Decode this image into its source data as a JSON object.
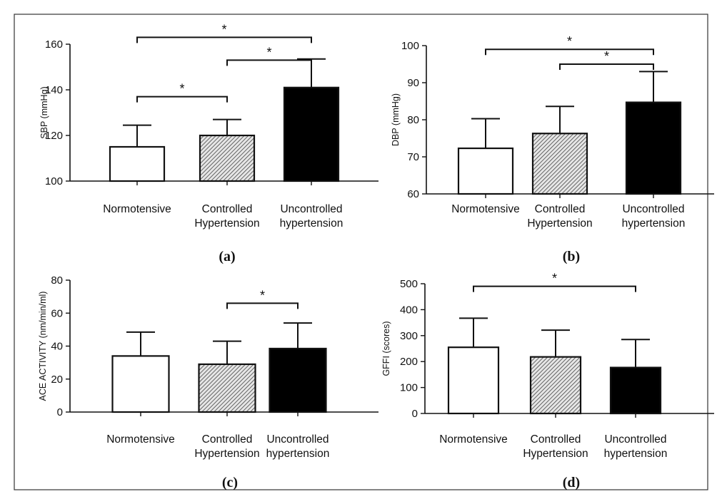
{
  "colors": {
    "normotensive": "#ffffff",
    "controlled": "hatched-gray",
    "uncontrolled": "#000000",
    "border": "#1a1a1a"
  },
  "chart_data": [
    {
      "type": "bar",
      "panel_label": "(a)",
      "ylabel": "SBP (mmHg)",
      "ylim": [
        100,
        160
      ],
      "yticks": [
        100,
        120,
        140,
        160
      ],
      "categories": [
        [
          "Normotensive"
        ],
        [
          "Controlled",
          "Hypertension"
        ],
        [
          "Uncontrolled",
          "hypertension"
        ]
      ],
      "values": [
        115,
        120,
        141
      ],
      "errors": [
        9.5,
        7,
        12.5
      ],
      "significance": [
        {
          "from": 0,
          "to": 2,
          "level": 163,
          "label": "*"
        },
        {
          "from": 1,
          "to": 2,
          "level": 153,
          "label": "*"
        },
        {
          "from": 0,
          "to": 1,
          "level": 137,
          "label": "*"
        }
      ]
    },
    {
      "type": "bar",
      "panel_label": "(b)",
      "ylabel": "DBP (mmHg)",
      "ylim": [
        60,
        100
      ],
      "yticks": [
        60,
        70,
        80,
        90,
        100
      ],
      "categories": [
        [
          "Normotensive"
        ],
        [
          "Controlled",
          "Hypertension"
        ],
        [
          "Uncontrolled",
          "hypertension"
        ]
      ],
      "values": [
        72.3,
        76.3,
        84.7
      ],
      "errors": [
        8,
        7.3,
        8.3
      ],
      "significance": [
        {
          "from": 0,
          "to": 2,
          "level": 99,
          "label": "*"
        },
        {
          "from": 1,
          "to": 2,
          "level": 95,
          "label": "*"
        }
      ]
    },
    {
      "type": "bar",
      "panel_label": "(c)",
      "ylabel": "ACE ACTIVITY (nm/min/ml)",
      "ylim": [
        0,
        80
      ],
      "yticks": [
        0,
        20,
        40,
        60,
        80
      ],
      "categories": [
        [
          "Normotensive"
        ],
        [
          "Controlled",
          "Hypertension"
        ],
        [
          "Uncontrolled",
          "hypertension"
        ]
      ],
      "values": [
        34,
        29,
        38.5
      ],
      "errors": [
        14.5,
        14,
        15.5
      ],
      "significance": [
        {
          "from": 1,
          "to": 2,
          "level": 66,
          "label": "*"
        }
      ]
    },
    {
      "type": "bar",
      "panel_label": "(d)",
      "ylabel": "GFFI (scores)",
      "ylim": [
        0,
        500
      ],
      "yticks": [
        0,
        100,
        200,
        300,
        400,
        500
      ],
      "categories": [
        [
          "Normotensive"
        ],
        [
          "Controlled",
          "Hypertension"
        ],
        [
          "Uncontrolled",
          "hypertension"
        ]
      ],
      "values": [
        255,
        218,
        177
      ],
      "errors": [
        112,
        103,
        108
      ],
      "significance": [
        {
          "from": 0,
          "to": 2,
          "level": 490,
          "label": "*"
        }
      ]
    }
  ]
}
